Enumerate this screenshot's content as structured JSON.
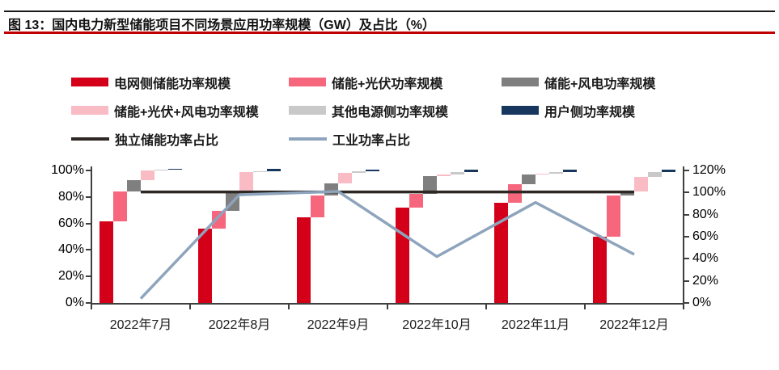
{
  "figure": {
    "title": "图 13：国内电力新型储能项目不同场景应用功率规模（GW）及占比（%）",
    "rule_color": "#c00000"
  },
  "legend": {
    "items": [
      {
        "key": "grid-side",
        "label": "电网侧储能功率规模",
        "color": "#d40019",
        "kind": "bar"
      },
      {
        "key": "storage-pv",
        "label": "储能+光伏功率规模",
        "color": "#f6677e",
        "kind": "bar"
      },
      {
        "key": "storage-wind",
        "label": "储能+风电功率规模",
        "color": "#7f7f7f",
        "kind": "bar"
      },
      {
        "key": "storage-pv-wind",
        "label": "储能+光伏+风电功率规模",
        "color": "#f9bcc4",
        "kind": "bar"
      },
      {
        "key": "other-source",
        "label": "其他电源侧功率规模",
        "color": "#c9c9c9",
        "kind": "bar"
      },
      {
        "key": "user-side",
        "label": "用户侧功率规模",
        "color": "#17375e",
        "kind": "bar"
      },
      {
        "key": "independent-storage-ratio",
        "label": "独立储能功率占比",
        "color": "#2e2723",
        "kind": "line"
      },
      {
        "key": "industrial-ratio",
        "label": "工业功率占比",
        "color": "#8ea4bd",
        "kind": "line"
      }
    ]
  },
  "chart_data": {
    "type": "bar",
    "variant": "waterfall-stacked percent columns with overlay lines",
    "categories": [
      "2022年7月",
      "2022年8月",
      "2022年9月",
      "2022年10月",
      "2022年11月",
      "2022年12月"
    ],
    "left_axis": {
      "min": 0,
      "max": 100,
      "tick_step": 20,
      "tick_labels": [
        "0%",
        "20%",
        "40%",
        "60%",
        "80%",
        "100%"
      ]
    },
    "right_axis": {
      "min": 0,
      "max": 120,
      "tick_step": 20,
      "tick_labels": [
        "0%",
        "20%",
        "40%",
        "60%",
        "80%",
        "100%",
        "120%"
      ]
    },
    "grid": "off",
    "legend_position": "top",
    "bar_series": [
      {
        "key": "grid-side",
        "name": "电网侧储能功率规模",
        "color": "#d40019",
        "axis": "left",
        "ranges": [
          [
            0,
            61.5
          ],
          [
            0,
            56
          ],
          [
            0,
            64.5
          ],
          [
            0,
            72
          ],
          [
            0,
            75.5
          ],
          [
            0,
            50
          ]
        ]
      },
      {
        "key": "storage-pv",
        "name": "储能+光伏功率规模",
        "color": "#f6677e",
        "axis": "left",
        "ranges": [
          [
            61.5,
            84
          ],
          [
            56,
            69.5
          ],
          [
            64.5,
            81
          ],
          [
            72,
            82.5
          ],
          [
            75.5,
            89.5
          ],
          [
            50,
            81
          ]
        ]
      },
      {
        "key": "storage-wind",
        "name": "储能+风电功率规模",
        "color": "#7f7f7f",
        "axis": "left",
        "ranges": [
          [
            84,
            92.5
          ],
          [
            69.5,
            84
          ],
          [
            81,
            90
          ],
          [
            82.5,
            96
          ],
          [
            89.5,
            97
          ],
          [
            81,
            84
          ]
        ]
      },
      {
        "key": "storage-pv-wind",
        "name": "储能+光伏+风电功率规模",
        "color": "#f9bcc4",
        "axis": "left",
        "ranges": [
          [
            92.5,
            100.2
          ],
          [
            84,
            98.6
          ],
          [
            90,
            98
          ],
          [
            96,
            97.2
          ],
          [
            97,
            97.3
          ],
          [
            84,
            95
          ]
        ]
      },
      {
        "key": "other-source",
        "name": "其他电源侧功率规模",
        "color": "#c9c9c9",
        "axis": "left",
        "ranges": [
          [
            100.2,
            100.8
          ],
          [
            98.6,
            99.6
          ],
          [
            98,
            99.6
          ],
          [
            97.2,
            98.6
          ],
          [
            97.3,
            99
          ],
          [
            95,
            98.6
          ]
        ]
      },
      {
        "key": "user-side",
        "name": "用户侧功率规模",
        "color": "#17375e",
        "axis": "left",
        "ranges": [
          [
            100.8,
            101.3
          ],
          [
            99.6,
            101
          ],
          [
            99.6,
            100.8
          ],
          [
            99,
            100.8
          ],
          [
            99,
            100.6
          ],
          [
            98.6,
            100.9
          ]
        ]
      }
    ],
    "line_series": [
      {
        "key": "independent-storage-ratio",
        "name": "独立储能功率占比",
        "color": "#2e2723",
        "axis": "right",
        "values": [
          100.5,
          100.5,
          100.5,
          100.5,
          100.5,
          100.5
        ]
      },
      {
        "key": "industrial-ratio",
        "name": "工业功率占比",
        "color": "#8ea4bd",
        "axis": "right",
        "values": [
          4,
          98,
          101,
          42,
          91,
          44
        ]
      }
    ]
  }
}
